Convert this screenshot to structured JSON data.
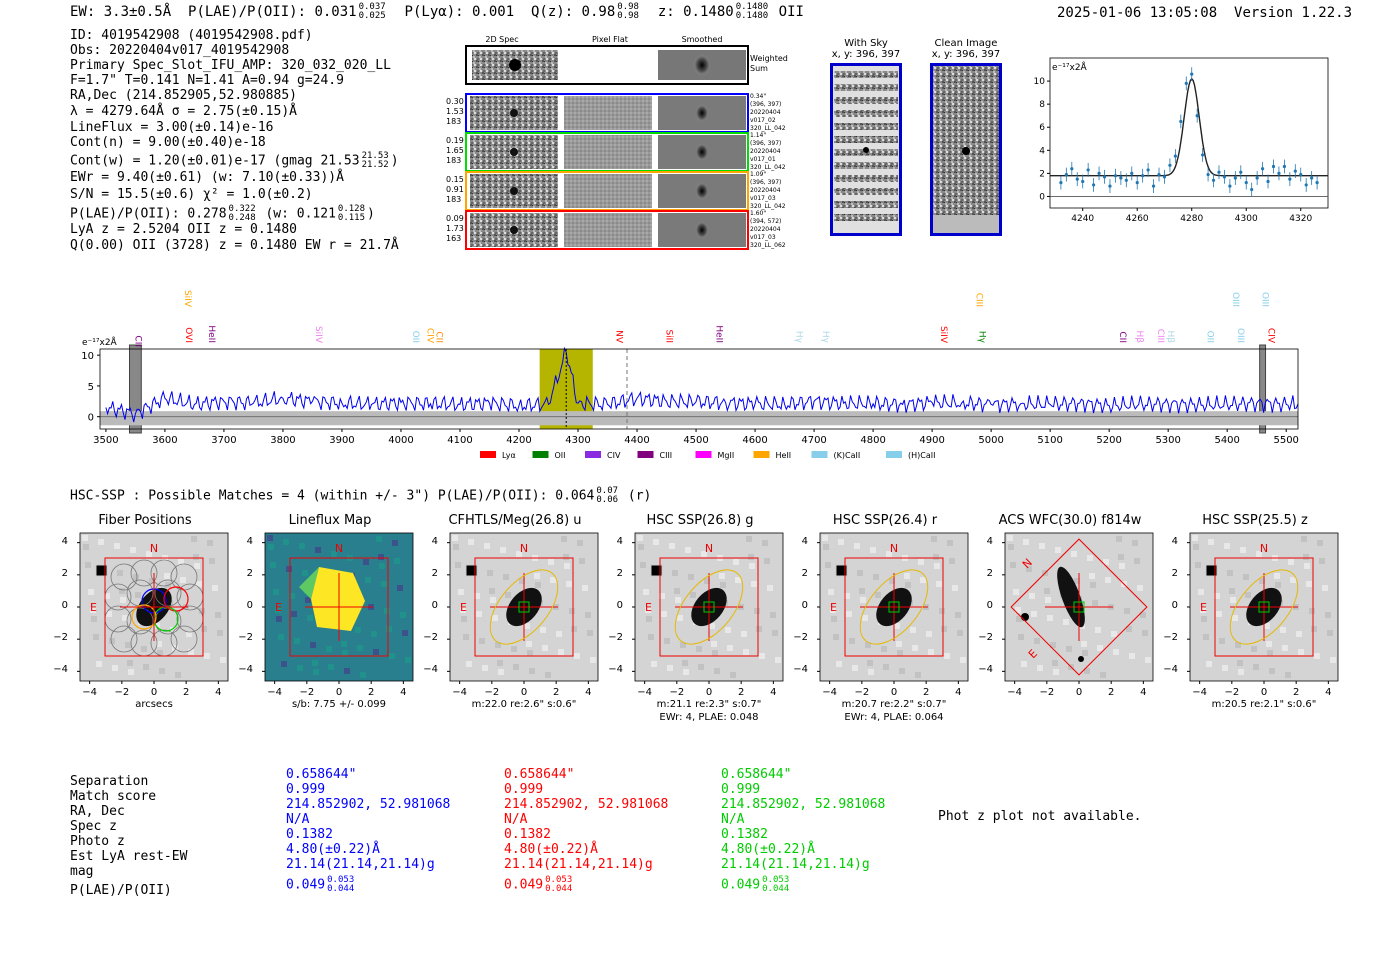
{
  "header": {
    "ew": "EW: 3.3±0.5Å",
    "plae_label": "P(LAE)/P(OII): 0.031",
    "plae_hi": "0.037",
    "plae_lo": "0.025",
    "plya": "P(Lyα): 0.001",
    "qz_label": "Q(z): 0.98",
    "qz_hi": "0.98",
    "qz_lo": "0.98",
    "z_label": "z: 0.1480",
    "z_hi": "0.1480",
    "z_lo": "0.1480",
    "z_line": "OII",
    "timestamp": "2025-01-06 13:05:08",
    "version": "Version 1.22.3"
  },
  "info": {
    "id": "ID: 4019542908 (4019542908.pdf)",
    "obs": "Obs: 20220404v017_4019542908",
    "primary": "Primary Spec_Slot_IFU_AMP: 320_032_020_LL",
    "f": "F=1.7\"  T=0.141  N=1.41  A=0.94  g=24.9",
    "radec": "RA,Dec (214.852905,52.980885)",
    "lambda": "λ = 4279.64Å  σ = 2.75(±0.15)Å",
    "lineflux": "LineFlux = 3.00(±0.14)e-16",
    "contn": "Cont(n) = 9.00(±0.40)e-18",
    "contw_prefix": "Cont(w) = 1.20(±0.01)e-17 (gmag 21.53",
    "contw_hi": "21.53",
    "contw_lo": "21.52",
    "contw_suffix": ")",
    "ewr": "EWr = 9.40(±0.61) (w: 7.10(±0.33))Å",
    "sn": "S/N = 15.5(±0.6)  χ² = 1.0(±0.2)",
    "plae_prefix": "P(LAE)/P(OII): 0.278",
    "plae_hi": "0.322",
    "plae_lo": "0.248",
    "plae_mid": "(w: 0.121",
    "plae_w_hi": "0.128",
    "plae_w_lo": "0.115",
    "plae_suffix": ")",
    "lyaz": "LyA z = 2.5204  OII z = 0.1480",
    "q": "Q(0.00) OII (3728) z = 0.1480  EW r = 21.7Å"
  },
  "cutouts": {
    "headers": [
      "2D Spec",
      "Pixel Flat",
      "Smoothed"
    ],
    "weighted_label": "Weighted\nSum",
    "rows": [
      {
        "stats": [
          "0.30",
          "1.53",
          "183"
        ],
        "color": "#0000ff",
        "notes": [
          "0.34\"",
          "(396, 397)",
          "20220404",
          "v017_02",
          "320_LL_042"
        ]
      },
      {
        "stats": [
          "0.19",
          "1.65",
          "183"
        ],
        "color": "#00dd00",
        "notes": [
          "1.14\"",
          "(396, 397)",
          "20220404",
          "v017_01",
          "320_LL_042"
        ]
      },
      {
        "stats": [
          "0.15",
          "0.91",
          "183"
        ],
        "color": "#ffa500",
        "notes": [
          "1.09\"",
          "(396, 397)",
          "20220404",
          "v017_03",
          "320_LL_042"
        ]
      },
      {
        "stats": [
          "0.09",
          "1.73",
          "163"
        ],
        "color": "#ff0000",
        "notes": [
          "1.60\"",
          "(394, 572)",
          "20220404",
          "v017_03",
          "320_LL_062"
        ]
      }
    ]
  },
  "sky": {
    "with_sky_title": "With Sky",
    "with_sky_coords": "x, y: 396, 397",
    "clean_title": "Clean Image",
    "clean_coords": "x, y: 396, 397"
  },
  "colors": {
    "blue": "#0000ff",
    "red": "#ff0000",
    "green": "#00cc00",
    "orange": "#ffa500",
    "olive": "#b5b500",
    "spec_line": "#1f77b4"
  },
  "chart_data": [
    {
      "type": "scatter",
      "panel": "line-fit",
      "unit_label": "e⁻¹⁷x2Å",
      "xlim": [
        4228,
        4330
      ],
      "ylim": [
        -1,
        12
      ],
      "xticks": [
        4240,
        4260,
        4280,
        4300,
        4320
      ],
      "yticks": [
        0,
        2,
        4,
        6,
        8,
        10
      ],
      "x": [
        4232,
        4234,
        4236,
        4238,
        4240,
        4242,
        4244,
        4246,
        4248,
        4250,
        4252,
        4254,
        4256,
        4258,
        4260,
        4262,
        4264,
        4266,
        4268,
        4270,
        4272,
        4274,
        4276,
        4278,
        4280,
        4282,
        4284,
        4286,
        4288,
        4290,
        4292,
        4294,
        4296,
        4298,
        4300,
        4302,
        4304,
        4306,
        4308,
        4310,
        4312,
        4314,
        4316,
        4318,
        4320,
        4322,
        4324,
        4326
      ],
      "y": [
        1.2,
        1.9,
        2.4,
        1.5,
        1.3,
        2.3,
        1.0,
        2.0,
        1.7,
        0.9,
        1.8,
        1.6,
        1.4,
        2.0,
        1.2,
        1.8,
        2.3,
        0.9,
        1.9,
        1.7,
        2.7,
        3.5,
        6.5,
        9.8,
        10.6,
        7.0,
        3.6,
        1.9,
        1.4,
        2.1,
        1.7,
        0.9,
        1.6,
        2.1,
        1.2,
        0.6,
        1.6,
        2.4,
        1.3,
        2.6,
        2.0,
        2.6,
        1.5,
        2.2,
        1.9,
        1.0,
        1.6,
        1.2
      ],
      "fit": {
        "continuum": 1.8,
        "center": 4280,
        "amplitude": 8.4,
        "sigma": 2.75
      }
    },
    {
      "type": "line",
      "panel": "full-spectrum",
      "unit_label": "e⁻¹⁷x2Å",
      "xlim": [
        3490,
        5520
      ],
      "ylim": [
        -2,
        11
      ],
      "xticks": [
        3500,
        3600,
        3700,
        3800,
        3900,
        4000,
        4100,
        4200,
        4300,
        4400,
        4500,
        4600,
        4700,
        4800,
        4900,
        5000,
        5100,
        5200,
        5300,
        5400,
        5500
      ],
      "yticks": [
        0,
        5,
        10
      ],
      "x": [
        3500,
        3550,
        3600,
        3650,
        3700,
        3750,
        3800,
        3850,
        3900,
        3950,
        4000,
        4050,
        4100,
        4150,
        4200,
        4250,
        4280,
        4300,
        4350,
        4400,
        4450,
        4500,
        4550,
        4600,
        4650,
        4700,
        4750,
        4800,
        4850,
        4900,
        4950,
        5000,
        5050,
        5100,
        5150,
        5200,
        5250,
        5300,
        5350,
        5400,
        5450,
        5500,
        5520
      ],
      "y": [
        1.5,
        0.5,
        3.0,
        2.0,
        2.5,
        2.2,
        3.0,
        2.5,
        2.2,
        2.0,
        2.3,
        2.1,
        2.0,
        2.2,
        1.8,
        2.0,
        10.5,
        2.2,
        2.0,
        3.0,
        2.5,
        2.4,
        2.3,
        2.1,
        2.0,
        2.5,
        2.2,
        2.1,
        2.0,
        2.3,
        2.2,
        2.0,
        2.1,
        2.0,
        2.2,
        1.8,
        2.0,
        2.1,
        1.9,
        2.0,
        2.2,
        2.0,
        2.1
      ],
      "highlight_range": [
        4235,
        4325
      ],
      "marked_wavelength": 4280,
      "dashed_wavelength": 4383,
      "masked_ranges": [
        [
          3540,
          3560
        ],
        [
          5455,
          5465
        ]
      ],
      "emission_lines": [
        {
          "label": "CII",
          "wavelength": 3550,
          "color": "#800080",
          "row": 2
        },
        {
          "label": "SiIV",
          "wavelength": 3634,
          "color": "#ffa500",
          "row": 0
        },
        {
          "label": "OVI",
          "wavelength": 3636,
          "color": "#ff0000",
          "row": 1
        },
        {
          "label": "HeII",
          "wavelength": 3675,
          "color": "#800080",
          "row": 1
        },
        {
          "label": "SiIV",
          "wavelength": 3856,
          "color": "#ee82ee",
          "row": 1
        },
        {
          "label": "OII",
          "wavelength": 4020,
          "color": "#87ceeb",
          "row": 1
        },
        {
          "label": "CIV",
          "wavelength": 4045,
          "color": "#ffa500",
          "row": 1
        },
        {
          "label": "CII",
          "wavelength": 4060,
          "color": "#ff8c00",
          "row": 1
        },
        {
          "label": "NV",
          "wavelength": 4365,
          "color": "#ff0000",
          "row": 1
        },
        {
          "label": "SiII",
          "wavelength": 4450,
          "color": "#ff0000",
          "row": 1
        },
        {
          "label": "HeII",
          "wavelength": 4535,
          "color": "#800080",
          "row": 1
        },
        {
          "label": "Hγ",
          "wavelength": 4670,
          "color": "#add8e6",
          "row": 1
        },
        {
          "label": "Hγ",
          "wavelength": 4715,
          "color": "#add8e6",
          "row": 1
        },
        {
          "label": "SiIV",
          "wavelength": 4915,
          "color": "#ff0000",
          "row": 1
        },
        {
          "label": "CIII",
          "wavelength": 4975,
          "color": "#ffa500",
          "row": 0
        },
        {
          "label": "Hγ",
          "wavelength": 4980,
          "color": "#008000",
          "row": 1
        },
        {
          "label": "CII",
          "wavelength": 5218,
          "color": "#800080",
          "row": 1
        },
        {
          "label": "Hβ",
          "wavelength": 5247,
          "color": "#ee82ee",
          "row": 1
        },
        {
          "label": "CIII",
          "wavelength": 5283,
          "color": "#ee82ee",
          "row": 1
        },
        {
          "label": "Hβ",
          "wavelength": 5300,
          "color": "#add8e6",
          "row": 1
        },
        {
          "label": "OII",
          "wavelength": 5367,
          "color": "#87ceeb",
          "row": 1
        },
        {
          "label": "OIII",
          "wavelength": 5410,
          "color": "#87ceeb",
          "row": 0
        },
        {
          "label": "OIII",
          "wavelength": 5418,
          "color": "#87ceeb",
          "row": 1
        },
        {
          "label": "OIII",
          "wavelength": 5460,
          "color": "#87ceeb",
          "row": 0
        },
        {
          "label": "CIV",
          "wavelength": 5470,
          "color": "#ff0000",
          "row": 1
        }
      ],
      "legend": [
        {
          "label": "Lyα",
          "color": "#ff0000"
        },
        {
          "label": "OII",
          "color": "#008000"
        },
        {
          "label": "CIV",
          "color": "#8a2be2"
        },
        {
          "label": "CIII",
          "color": "#800080"
        },
        {
          "label": "MgII",
          "color": "#ff00ff"
        },
        {
          "label": "HeII",
          "color": "#ffa500"
        },
        {
          "label": "(K)CaII",
          "color": "#87ceeb"
        },
        {
          "label": "(H)CaII",
          "color": "#87ceeb"
        }
      ]
    }
  ],
  "hsc": {
    "prefix": "HSC-SSP : Possible Matches = 4 (within +/- 3\")  P(LAE)/P(OII): 0.064",
    "hi": "0.07",
    "lo": "0.06",
    "suffix": "(r)"
  },
  "images": {
    "ticks": [
      "−4",
      "−2",
      "0",
      "2",
      "4"
    ],
    "panels": [
      {
        "title": "Fiber Positions",
        "caption1": "arcsecs",
        "caption2": ""
      },
      {
        "title": "Lineflux Map",
        "caption1": "s/b: 7.75 +/- 0.099",
        "caption2": ""
      },
      {
        "title": "CFHTLS/Meg(26.8) u",
        "caption1": "m:22.0  re:2.6\"  s:0.6\"",
        "caption2": ""
      },
      {
        "title": "HSC SSP(26.8) g",
        "caption1": "m:21.1  re:2.3\"  s:0.7\"",
        "caption2": "EWr: 4, PLAE: 0.048"
      },
      {
        "title": "HSC SSP(26.4) r",
        "caption1": "m:20.7  re:2.2\"  s:0.7\"",
        "caption2": "EWr: 4, PLAE: 0.064"
      },
      {
        "title": "ACS WFC(30.0) f814w",
        "caption1": "",
        "caption2": ""
      },
      {
        "title": "HSC SSP(25.5) z",
        "caption1": "m:20.5  re:2.1\"  s:0.6\"",
        "caption2": ""
      }
    ],
    "compass_n": "N",
    "compass_e": "E"
  },
  "matches": {
    "labels": [
      "Separation",
      "Match score",
      "RA, Dec",
      "Spec z",
      "Photo z",
      "Est LyA rest-EW",
      "mag",
      "P(LAE)/P(OII)"
    ],
    "columns": [
      {
        "color": "#0000ff",
        "values": [
          "0.658644\"",
          "0.999",
          "214.852902, 52.981068",
          "N/A",
          "0.1382",
          "4.80(±0.22)Å",
          "21.14(21.14,21.14)g"
        ],
        "plae": "0.049",
        "plae_hi": "0.053",
        "plae_lo": "0.044"
      },
      {
        "color": "#ff0000",
        "values": [
          "0.658644\"",
          "0.999",
          "214.852902, 52.981068",
          "N/A",
          "0.1382",
          "4.80(±0.22)Å",
          "21.14(21.14,21.14)g"
        ],
        "plae": "0.049",
        "plae_hi": "0.053",
        "plae_lo": "0.044"
      },
      {
        "color": "#00cc00",
        "values": [
          "0.658644\"",
          "0.999",
          "214.852902, 52.981068",
          "N/A",
          "0.1382",
          "4.80(±0.22)Å",
          "21.14(21.14,21.14)g"
        ],
        "plae": "0.049",
        "plae_hi": "0.053",
        "plae_lo": "0.044"
      }
    ],
    "photz_note": "Phot z plot not available."
  }
}
